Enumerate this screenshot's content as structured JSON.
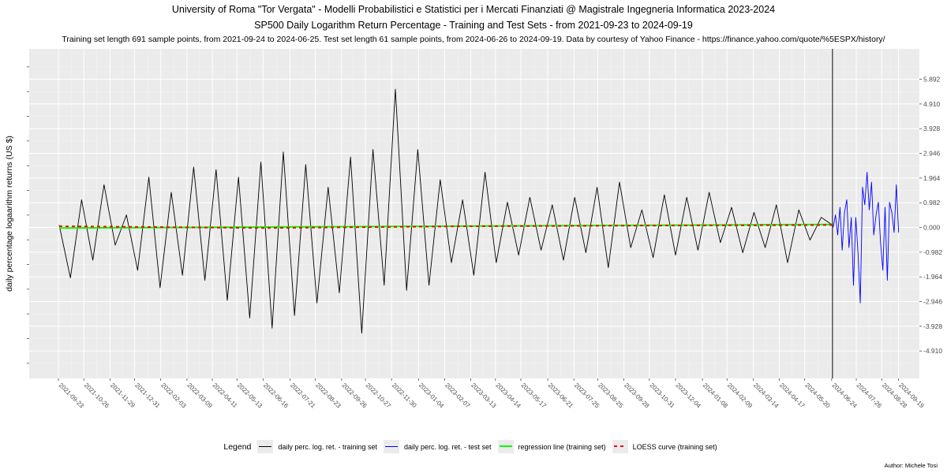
{
  "chart_data": {
    "type": "line",
    "title": "University of Roma \"Tor Vergata\" - Modelli Probabilistici e Statistici per i Mercati Finanziati @ Magistrale Ingegneria Informatica 2023-2024",
    "subtitle": "SP500 Daily Logarithm Return Percentage - Training and Test Sets - from 2021-09-23 to 2024-09-19",
    "caption": "Training set length 691 sample points, from 2021-09-24 to 2024-06-25. Test set length 61 sample points, from 2024-06-26 to 2024-09-19. Data by courtesy of Yahoo Finance - https://finance.yahoo.com/quote/%5ESPX/history/",
    "ylabel": "daily percentage logaarithm returns (US $)",
    "xlabel": "",
    "ylim": [
      -6.0,
      7.1
    ],
    "y_ticks": [
      "-4.910",
      "-3.928",
      "-2.946",
      "-1.964",
      "-0.982",
      "0.000",
      "0.982",
      "1.964",
      "2.946",
      "3.928",
      "4.910",
      "5.892"
    ],
    "y_tick_values": [
      -4.91,
      -3.928,
      -2.946,
      -1.964,
      -0.982,
      0.0,
      0.982,
      1.964,
      2.946,
      3.928,
      4.91,
      5.892
    ],
    "x_ticks": [
      "2021-09-23",
      "2021-10-26",
      "2021-11-29",
      "2021-12-31",
      "2022-02-03",
      "2022-03-09",
      "2022-04-11",
      "2022-05-13",
      "2022-06-16",
      "2022-07-21",
      "2022-08-23",
      "2022-09-26",
      "2022-10-27",
      "2022-11-30",
      "2023-01-04",
      "2023-02-07",
      "2023-03-13",
      "2023-04-14",
      "2023-05-17",
      "2023-06-21",
      "2023-07-25",
      "2023-08-25",
      "2023-09-28",
      "2023-10-31",
      "2023-12-04",
      "2024-01-08",
      "2024-02-09",
      "2024-03-14",
      "2024-04-17",
      "2024-05-20",
      "2024-06-24",
      "2024-07-26",
      "2024-08-28",
      "2024-09-19"
    ],
    "grid": true,
    "legend_position": "bottom",
    "split_date": "2024-06-25",
    "series": [
      {
        "name": "daily perc. log. ret. - training set",
        "color": "#000000",
        "x_start": "2021-09-24",
        "x_end": "2024-06-25",
        "n_points": 691,
        "values_sampled": [
          0.1,
          -2.0,
          1.1,
          -1.3,
          1.7,
          -0.7,
          0.5,
          -1.7,
          2.0,
          -2.4,
          1.4,
          -1.9,
          2.4,
          -2.1,
          2.3,
          -2.9,
          2.0,
          -3.6,
          2.6,
          -4.0,
          3.0,
          -3.5,
          2.5,
          -3.0,
          1.6,
          -2.6,
          2.8,
          -4.2,
          3.1,
          -2.3,
          5.5,
          -2.5,
          3.1,
          -2.3,
          1.9,
          -1.4,
          1.1,
          -1.9,
          2.2,
          -1.4,
          1.0,
          -1.1,
          1.2,
          -0.9,
          0.9,
          -1.3,
          1.2,
          -1.0,
          1.6,
          -1.6,
          1.8,
          -0.8,
          0.7,
          -1.2,
          1.3,
          -1.1,
          1.2,
          -0.9,
          1.4,
          -0.6,
          0.8,
          -1.0,
          0.6,
          -0.8,
          0.9,
          -1.4,
          0.7,
          -0.5,
          0.4,
          0.1
        ]
      },
      {
        "name": "daily perc. log. ret. - test set",
        "color": "#0000ff",
        "x_start": "2024-06-26",
        "x_end": "2024-09-19",
        "n_points": 61,
        "values_sampled": [
          0.0,
          0.5,
          -0.3,
          0.8,
          -0.9,
          0.6,
          1.1,
          -0.8,
          0.4,
          -2.3,
          0.4,
          -1.0,
          -3.0,
          1.6,
          0.9,
          2.2,
          0.7,
          1.8,
          -0.3,
          0.5,
          1.0,
          -0.6,
          -1.7,
          0.8,
          -2.1,
          1.0,
          0.6,
          -0.2,
          1.7,
          -0.2
        ]
      },
      {
        "name": "regression line (training set)",
        "color": "#00ff00",
        "x": [
          "2021-09-24",
          "2024-06-25"
        ],
        "values": [
          -0.02,
          0.12
        ]
      },
      {
        "name": "LOESS curve (training set)",
        "color": "#ff0000",
        "x": [
          "2021-09-24",
          "2022-06-16",
          "2023-03-13",
          "2023-12-04",
          "2024-06-25"
        ],
        "values": [
          0.05,
          -0.02,
          0.05,
          0.08,
          0.1
        ]
      }
    ]
  },
  "legend": {
    "title": "Legend",
    "items": [
      {
        "label": "daily perc. log. ret. - training set",
        "color": "#000000",
        "style": "solid"
      },
      {
        "label": "daily perc. log. ret. - test set",
        "color": "#0000ff",
        "style": "solid"
      },
      {
        "label": "regression line (training set)",
        "color": "#00ff00",
        "style": "thick"
      },
      {
        "label": "LOESS curve (training set)",
        "color": "#ff0000",
        "style": "dash"
      }
    ]
  },
  "author": "Author: Michele Tosi"
}
